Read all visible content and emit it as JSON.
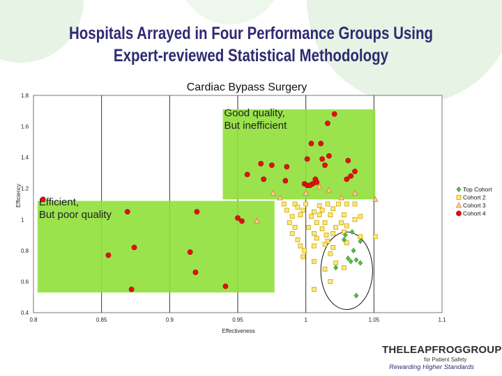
{
  "slide": {
    "title_line1": "Hospitals Arrayed in Four Performance Groups Using",
    "title_line2": "Expert-reviewed Statistical Methodology"
  },
  "logo": {
    "main": "THELEAPFROGGROUP",
    "sub1": "for Patient Safety",
    "sub2": "Rewarding Higher Standards"
  },
  "colors": {
    "title": "#2f2a72",
    "region_fill": "#8fe03a",
    "cohort1": "#5cbf3f",
    "cohort2": "#ffe680",
    "cohort3": "#ffd0a0",
    "cohort4": "#e01010",
    "bg_circles": "#e7f3e4"
  },
  "chart_data": {
    "type": "scatter",
    "title": "Cardiac Bypass Surgery",
    "xlabel": "Effectiveness",
    "ylabel": "Efficiency",
    "xlim": [
      0.8,
      1.1
    ],
    "ylim": [
      0.4,
      1.8
    ],
    "xticks": [
      "0.8",
      "0.85",
      "0.9",
      "0.95",
      "1",
      "1.05",
      "1.1"
    ],
    "yticks": [
      "0.4",
      "0.6",
      "0.8",
      "1",
      "1.2",
      "1.4",
      "1.6",
      "1.8"
    ],
    "grid": "vertical",
    "legend_position": "right",
    "regions": [
      {
        "name": "Good quality region",
        "x": [
          0.939,
          1.051
        ],
        "y": [
          1.13,
          1.71
        ],
        "label": "Good quality,\nBut inefficient",
        "label_at": [
          0.94,
          1.665
        ]
      },
      {
        "name": "Efficient region",
        "x": [
          0.803,
          0.977
        ],
        "y": [
          0.53,
          1.12
        ],
        "label": "Efficient,\nBut poor quality",
        "label_at": [
          0.804,
          1.09
        ]
      }
    ],
    "annotation_circle": {
      "center": [
        1.03,
        0.67
      ],
      "radius_x": 0.019,
      "radius_y": 0.25
    },
    "series": [
      {
        "name": "Top Cohort",
        "marker": "diamond",
        "points": [
          [
            1.029,
            0.9
          ],
          [
            1.034,
            0.92
          ],
          [
            1.04,
            0.86
          ],
          [
            1.035,
            0.8
          ],
          [
            1.028,
            0.87
          ],
          [
            1.037,
            0.74
          ],
          [
            1.031,
            0.75
          ],
          [
            1.033,
            0.73
          ],
          [
            1.022,
            0.69
          ],
          [
            1.04,
            0.72
          ],
          [
            1.037,
            0.51
          ]
        ]
      },
      {
        "name": "Cohort 2",
        "marker": "square",
        "points": [
          [
            0.984,
            1.1
          ],
          [
            0.992,
            1.1
          ],
          [
            0.994,
            1.08
          ],
          [
            1.0,
            1.1
          ],
          [
            1.01,
            1.09
          ],
          [
            1.016,
            1.1
          ],
          [
            1.024,
            1.1
          ],
          [
            1.03,
            1.1
          ],
          [
            1.036,
            1.1
          ],
          [
            0.986,
            1.06
          ],
          [
            0.998,
            1.06
          ],
          [
            1.006,
            1.05
          ],
          [
            1.012,
            1.06
          ],
          [
            1.02,
            1.07
          ],
          [
            0.99,
            1.02
          ],
          [
            0.996,
            1.03
          ],
          [
            1.004,
            1.02
          ],
          [
            1.01,
            1.03
          ],
          [
            1.018,
            1.03
          ],
          [
            1.028,
            1.03
          ],
          [
            1.04,
            1.02
          ],
          [
            0.988,
            0.98
          ],
          [
            1.008,
            0.98
          ],
          [
            1.014,
            0.98
          ],
          [
            1.026,
            0.98
          ],
          [
            1.036,
            1.0
          ],
          [
            0.992,
            0.95
          ],
          [
            1.002,
            0.95
          ],
          [
            1.012,
            0.94
          ],
          [
            1.022,
            0.95
          ],
          [
            1.03,
            0.96
          ],
          [
            0.99,
            0.91
          ],
          [
            1.006,
            0.91
          ],
          [
            1.015,
            0.9
          ],
          [
            1.02,
            0.91
          ],
          [
            1.028,
            0.92
          ],
          [
            1.04,
            0.89
          ],
          [
            0.994,
            0.87
          ],
          [
            1.008,
            0.88
          ],
          [
            1.016,
            0.86
          ],
          [
            0.996,
            0.83
          ],
          [
            1.006,
            0.83
          ],
          [
            1.014,
            0.84
          ],
          [
            1.02,
            0.82
          ],
          [
            1.03,
            0.85
          ],
          [
            1.051,
            0.89
          ],
          [
            0.999,
            0.8
          ],
          [
            1.018,
            0.78
          ],
          [
            1.022,
            0.72
          ],
          [
            1.028,
            0.69
          ],
          [
            0.998,
            0.76
          ],
          [
            1.006,
            0.73
          ],
          [
            1.014,
            0.68
          ],
          [
            1.018,
            0.6
          ],
          [
            1.006,
            0.55
          ]
        ]
      },
      {
        "name": "Cohort 3",
        "marker": "triangle",
        "points": [
          [
            0.976,
            1.17
          ],
          [
            0.981,
            1.14
          ],
          [
            1.0,
            1.17
          ],
          [
            1.01,
            1.21
          ],
          [
            1.017,
            1.19
          ],
          [
            1.026,
            1.14
          ],
          [
            1.036,
            1.17
          ],
          [
            1.051,
            1.13
          ],
          [
            0.964,
            0.99
          ]
        ]
      },
      {
        "name": "Cohort 4",
        "marker": "circle",
        "points": [
          [
            1.021,
            1.68
          ],
          [
            1.016,
            1.62
          ],
          [
            1.004,
            1.49
          ],
          [
            1.011,
            1.49
          ],
          [
            1.001,
            1.39
          ],
          [
            1.012,
            1.39
          ],
          [
            1.017,
            1.41
          ],
          [
            1.031,
            1.38
          ],
          [
            0.967,
            1.36
          ],
          [
            0.975,
            1.35
          ],
          [
            0.986,
            1.34
          ],
          [
            0.957,
            1.29
          ],
          [
            1.014,
            1.35
          ],
          [
            1.036,
            1.31
          ],
          [
            1.033,
            1.28
          ],
          [
            1.03,
            1.26
          ],
          [
            1.007,
            1.26
          ],
          [
            0.969,
            1.26
          ],
          [
            0.985,
            1.25
          ],
          [
            0.999,
            1.23
          ],
          [
            1.001,
            1.22
          ],
          [
            1.005,
            1.23
          ],
          [
            1.003,
            1.22
          ],
          [
            1.008,
            1.24
          ],
          [
            0.807,
            1.13
          ],
          [
            0.869,
            1.05
          ],
          [
            0.92,
            1.05
          ],
          [
            0.95,
            1.01
          ],
          [
            0.953,
            0.99
          ],
          [
            0.874,
            0.82
          ],
          [
            0.915,
            0.79
          ],
          [
            0.855,
            0.77
          ],
          [
            0.919,
            0.66
          ],
          [
            0.872,
            0.55
          ],
          [
            0.941,
            0.57
          ]
        ]
      }
    ]
  }
}
